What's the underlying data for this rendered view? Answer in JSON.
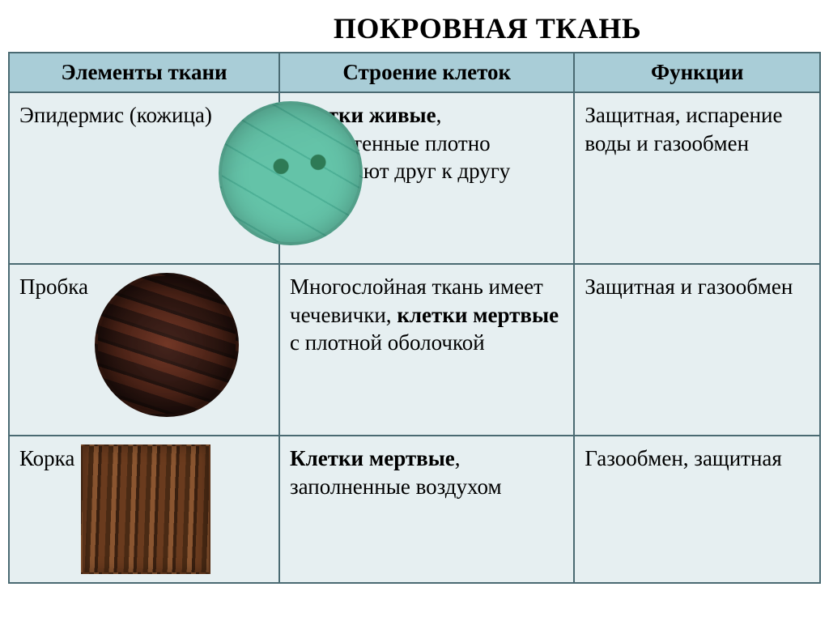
{
  "title": "ПОКРОВНАЯ ТКАНЬ",
  "headers": {
    "c1": "Элементы ткани",
    "c2": "Строение клеток",
    "c3": "Функции"
  },
  "rows": [
    {
      "label": "Эпидермис (кожица)",
      "image_kind": "epidermis",
      "image_shape": "circle",
      "structure_bold": "Клетки живые",
      "structure_rest": ", тонкостенные плотно прилегают друг к другу",
      "functions": "Защитная, испарение воды и газообмен"
    },
    {
      "label": "Пробка",
      "image_kind": "cork",
      "image_shape": "circle",
      "structure_pre": "Многослойная ткань имеет чечевички, ",
      "structure_bold": "клетки мертвые",
      "structure_rest": " с плотной оболочкой",
      "functions": "Защитная и газообмен"
    },
    {
      "label": "Корка",
      "image_kind": "bark",
      "image_shape": "rect",
      "structure_bold": "Клетки мертвые",
      "structure_rest": ", заполненные воздухом",
      "functions": "Газообмен, защитная"
    }
  ],
  "colors": {
    "header_bg": "#a9cdd7",
    "cell_bg": "#e6eff1",
    "border": "#4a6a72"
  }
}
